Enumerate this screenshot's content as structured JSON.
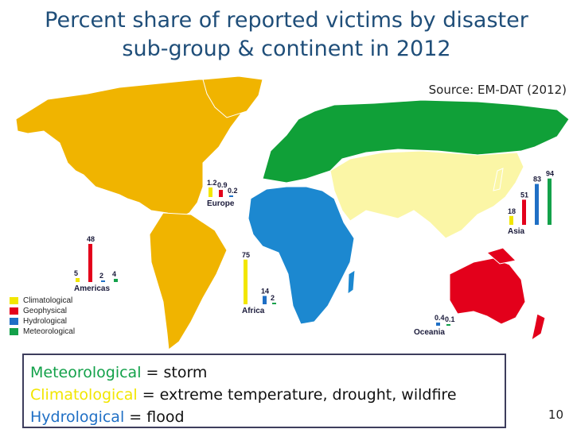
{
  "title_line1": "Percent share of reported victims by disaster",
  "title_line2": "sub-group & continent in 2012",
  "source": "Source: EM-DAT (2012)",
  "page_number": "10",
  "colors": {
    "climatological": "#f2e600",
    "geophysical": "#e3001b",
    "hydrological": "#1f6fc5",
    "meteorological": "#13a14a",
    "americas_land": "#f0b400",
    "europe_asia_land": "#10a038",
    "africa_land": "#1c88d0",
    "asia_land": "#fbf6a6",
    "oceania_land": "#e3001b"
  },
  "legend": [
    {
      "key": "climatological",
      "label": "Climatological"
    },
    {
      "key": "geophysical",
      "label": "Geophysical"
    },
    {
      "key": "hydrological",
      "label": "Hydrological"
    },
    {
      "key": "meteorological",
      "label": "Meteorological"
    }
  ],
  "definitions": [
    {
      "term": "Meteorological",
      "rest": " = storm",
      "key": "meteorological"
    },
    {
      "term": "Climatological",
      "rest": " = extreme temperature, drought, wildfire",
      "key": "climatological"
    },
    {
      "term": "Hydrological",
      "rest": " = flood",
      "key": "hydrological"
    }
  ],
  "chart_data": {
    "type": "bar",
    "title": "Percent share of reported victims by disaster sub-group & continent in 2012",
    "categories": [
      "Climatological",
      "Geophysical",
      "Hydrological",
      "Meteorological"
    ],
    "unit": "percent",
    "continents": [
      {
        "name": "Americas",
        "values": [
          5,
          48,
          2,
          4
        ],
        "labels": [
          "5",
          "48",
          "2",
          "4"
        ]
      },
      {
        "name": "Europe",
        "values": [
          1.2,
          0.9,
          0.2,
          null
        ],
        "labels": [
          "1.2",
          "0.9",
          "0.2",
          ""
        ]
      },
      {
        "name": "Africa",
        "values": [
          75,
          null,
          14,
          2
        ],
        "labels": [
          "75",
          "",
          "14",
          "2"
        ]
      },
      {
        "name": "Asia",
        "values": [
          18,
          51,
          83,
          94
        ],
        "labels": [
          "18",
          "51",
          "83",
          "94"
        ]
      },
      {
        "name": "Oceania",
        "values": [
          null,
          null,
          0.4,
          0.1
        ],
        "labels": [
          "",
          "",
          "0.4",
          "0.1"
        ]
      }
    ]
  }
}
